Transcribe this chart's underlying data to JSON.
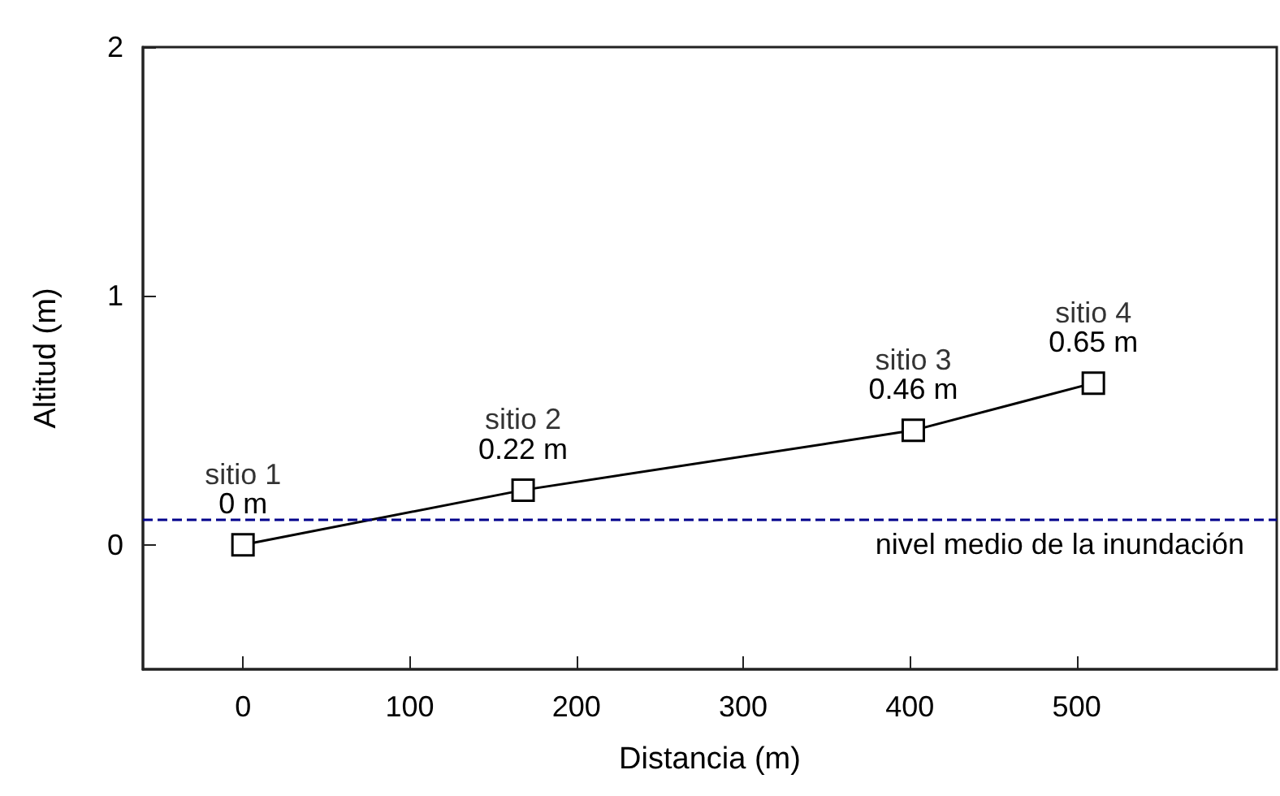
{
  "chart_data": {
    "type": "line",
    "xlabel": "Distancia (m)",
    "ylabel": "Altitud (m)",
    "x": [
      0,
      168,
      402,
      510
    ],
    "series": [
      {
        "color": "#000000",
        "values": [
          0,
          0.22,
          0.46,
          0.65
        ],
        "value_labels": [
          "0 m",
          "0.22 m",
          "0.46 m",
          "0.65 m"
        ]
      }
    ],
    "annotations": [
      {
        "text": "sitio 1",
        "x": 0,
        "y": 0
      },
      {
        "text": "sitio 2",
        "x": 168,
        "y": 0.22
      },
      {
        "text": "sitio 3",
        "x": 402,
        "y": 0.46
      },
      {
        "text": "sitio 4",
        "x": 510,
        "y": 0.65
      }
    ],
    "ref_lines": [
      {
        "axis": "y",
        "value": 0.1,
        "label": "nivel medio de la inundación",
        "color": "#00008b",
        "line_style": "dashed"
      }
    ],
    "xlim": [
      -60,
      620
    ],
    "xticks": [
      0,
      100,
      200,
      300,
      400,
      500
    ],
    "ylim": [
      -0.5,
      2
    ],
    "yticks": [
      0,
      1,
      2
    ],
    "marker": "square",
    "line_style": "solid",
    "grid": false
  }
}
